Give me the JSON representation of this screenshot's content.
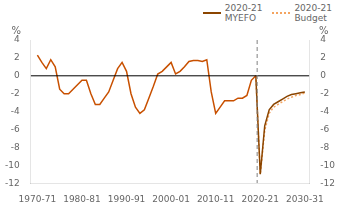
{
  "chart_data": {
    "type": "line",
    "ylabel": "%",
    "y2label": "%",
    "xlim": [
      1969.0,
      2031.5
    ],
    "xticks": [
      {
        "value": 1970.5,
        "label": "1970-71"
      },
      {
        "value": 1980.5,
        "label": "1980-81"
      },
      {
        "value": 1990.5,
        "label": "1990-91"
      },
      {
        "value": 2000.5,
        "label": "2000-01"
      },
      {
        "value": 2010.5,
        "label": "2010-11"
      },
      {
        "value": 2020.5,
        "label": "2020-21"
      },
      {
        "value": 2030.5,
        "label": "2030-31"
      }
    ],
    "ylim": [
      -12,
      4
    ],
    "yticks": [
      -12,
      -10,
      -8,
      -6,
      -4,
      -2,
      0,
      2,
      4
    ],
    "y2lim": [
      -12,
      4
    ],
    "y2ticks": [
      -12,
      -10,
      -8,
      -6,
      -4,
      -2,
      0,
      2,
      4
    ],
    "grid": false,
    "legend": "upper right",
    "series": [
      {
        "color": "#C85000",
        "line_style": "solid",
        "x": [
          1970.5,
          1971.5,
          1972.5,
          1973.5,
          1974.5,
          1975.5,
          1976.5,
          1977.5,
          1978.5,
          1979.5,
          1980.5,
          1981.5,
          1982.5,
          1983.5,
          1984.5,
          1985.5,
          1986.5,
          1987.5,
          1988.5,
          1989.5,
          1990.5,
          1991.5,
          1992.5,
          1993.5,
          1994.5,
          1995.5,
          1996.5,
          1997.5,
          1998.5,
          1999.5,
          2000.5,
          2001.5,
          2002.5,
          2003.5,
          2004.5,
          2005.5,
          2006.5,
          2007.5,
          2008.5,
          2009.5,
          2010.5,
          2011.5,
          2012.5,
          2013.5,
          2014.5,
          2015.5,
          2016.5,
          2017.5,
          2018.5,
          2019.5
        ],
        "values": [
          2.3,
          1.5,
          0.8,
          1.8,
          1.0,
          -1.5,
          -2.0,
          -2.0,
          -1.5,
          -1.0,
          -0.5,
          -0.5,
          -2.0,
          -3.2,
          -3.2,
          -2.5,
          -1.8,
          -0.5,
          0.8,
          1.5,
          0.5,
          -2.0,
          -3.5,
          -4.2,
          -3.8,
          -2.5,
          -1.2,
          0.2,
          0.5,
          1.0,
          1.5,
          0.2,
          0.5,
          1.0,
          1.6,
          1.7,
          1.7,
          1.6,
          1.8,
          -1.8,
          -4.2,
          -3.5,
          -2.8,
          -2.8,
          -2.8,
          -2.5,
          -2.5,
          -2.2,
          -0.5,
          0.0
        ]
      },
      {
        "name": "2020-21\nMYEFO",
        "color": "#8B4500",
        "line_style": "solid",
        "x": [
          2019.5,
          2020.5,
          2021.5,
          2022.5,
          2023.5,
          2024.5,
          2025.5,
          2026.5,
          2027.5,
          2028.5,
          2029.5,
          2030.5
        ],
        "values": [
          0.0,
          -11.0,
          -5.6,
          -3.8,
          -3.2,
          -2.9,
          -2.6,
          -2.3,
          -2.1,
          -2.0,
          -1.9,
          -1.8
        ]
      },
      {
        "name": "2020-21\nBudget",
        "color": "#F4A460",
        "line_style": "dotted",
        "x": [
          2019.5,
          2020.5,
          2021.5,
          2022.5,
          2023.5,
          2024.5,
          2025.5,
          2026.5,
          2027.5,
          2028.5,
          2029.5,
          2030.5
        ],
        "values": [
          0.0,
          -11.0,
          -6.1,
          -4.2,
          -3.5,
          -3.2,
          -2.9,
          -2.6,
          -2.4,
          -2.2,
          -2.1,
          -1.9
        ]
      }
    ],
    "reference_lines": [
      {
        "y": 0,
        "color": "#000000",
        "line_style": "solid"
      },
      {
        "x": 2019.8,
        "color": "#808080",
        "line_style": "dashed"
      }
    ]
  }
}
